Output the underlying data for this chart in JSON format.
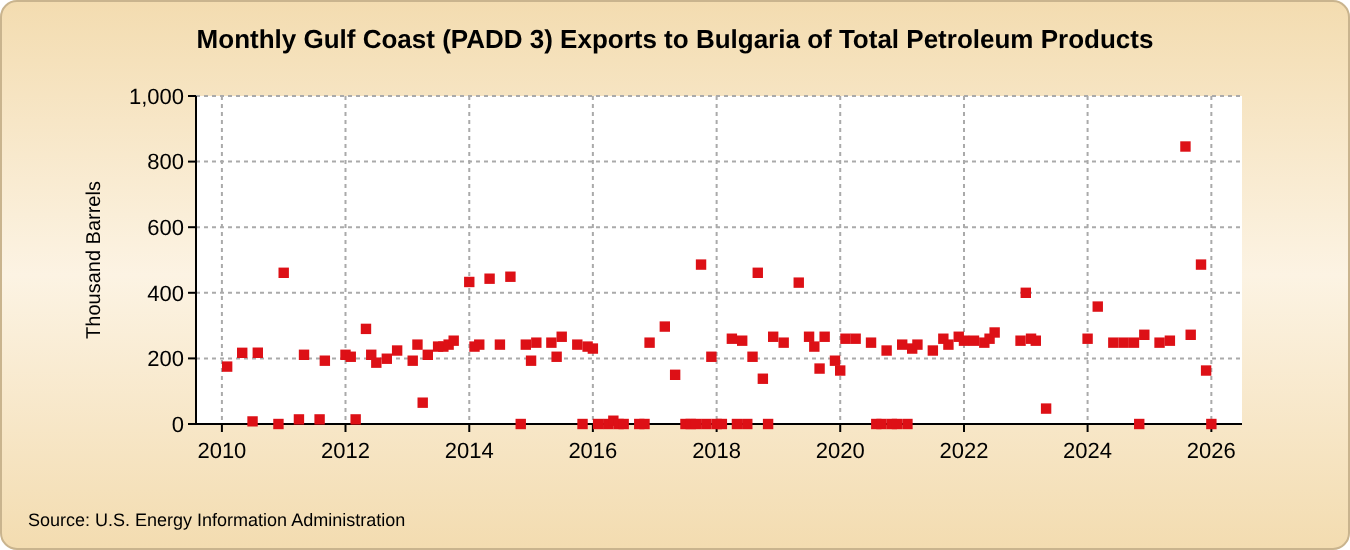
{
  "chart_data": {
    "type": "scatter",
    "title": "Monthly Gulf Coast (PADD 3) Exports to Bulgaria of Total Petroleum Products",
    "ylabel": "Thousand Barrels",
    "annotations": [
      "Source: U.S. Energy Information Administration"
    ],
    "x": [
      "2010-02",
      "2010-05",
      "2010-07",
      "2010-08",
      "2010-12",
      "2011-01",
      "2011-04",
      "2011-05",
      "2011-08",
      "2011-09",
      "2012-01",
      "2012-02",
      "2012-03",
      "2012-05",
      "2012-06",
      "2012-07",
      "2012-09",
      "2012-11",
      "2013-02",
      "2013-03",
      "2013-04",
      "2013-05",
      "2013-07",
      "2013-08",
      "2013-09",
      "2013-10",
      "2014-01",
      "2014-02",
      "2014-03",
      "2014-05",
      "2014-07",
      "2014-09",
      "2014-11",
      "2014-12",
      "2015-01",
      "2015-02",
      "2015-05",
      "2015-06",
      "2015-07",
      "2015-10",
      "2015-11",
      "2015-12",
      "2016-01",
      "2016-02",
      "2016-04",
      "2016-05",
      "2016-06",
      "2016-07",
      "2016-10",
      "2016-11",
      "2016-12",
      "2017-03",
      "2017-05",
      "2017-07",
      "2017-08",
      "2017-09",
      "2017-10",
      "2017-11",
      "2017-12",
      "2018-01",
      "2018-02",
      "2018-04",
      "2018-05",
      "2018-06",
      "2018-07",
      "2018-08",
      "2018-09",
      "2018-10",
      "2018-11",
      "2018-12",
      "2019-02",
      "2019-05",
      "2019-07",
      "2019-08",
      "2019-09",
      "2019-10",
      "2019-12",
      "2020-01",
      "2020-02",
      "2020-04",
      "2020-07",
      "2020-08",
      "2020-09",
      "2020-10",
      "2020-11",
      "2020-12",
      "2021-01",
      "2021-02",
      "2021-03",
      "2021-04",
      "2021-07",
      "2021-09",
      "2021-10",
      "2021-12",
      "2022-01",
      "2022-03",
      "2022-05",
      "2022-06",
      "2022-07",
      "2022-12",
      "2023-01",
      "2023-02",
      "2023-03",
      "2023-05",
      "2024-01",
      "2024-03",
      "2024-06",
      "2024-08",
      "2024-10",
      "2024-11",
      "2024-12",
      "2025-03",
      "2025-05",
      "2025-08",
      "2025-09",
      "2025-11",
      "2025-12",
      "2026-01"
    ],
    "series": [
      {
        "color": "#dd1016",
        "values": [
          175,
          217,
          8,
          217,
          0,
          461,
          14,
          211,
          14,
          193,
          211,
          205,
          14,
          290,
          211,
          187,
          199,
          224,
          193,
          242,
          65,
          211,
          236,
          236,
          242,
          254,
          433,
          236,
          242,
          443,
          242,
          449,
          0,
          242,
          193,
          248,
          248,
          205,
          266,
          242,
          0,
          236,
          230,
          0,
          0,
          10,
          0,
          0,
          0,
          0,
          248,
          297,
          150,
          0,
          0,
          0,
          486,
          0,
          205,
          0,
          0,
          260,
          0,
          254,
          0,
          205,
          461,
          138,
          0,
          266,
          248,
          431,
          266,
          236,
          169,
          266,
          193,
          163,
          260,
          260,
          248,
          0,
          0,
          224,
          0,
          0,
          242,
          0,
          230,
          242,
          224,
          260,
          242,
          266,
          254,
          254,
          248,
          260,
          279,
          254,
          400,
          260,
          254,
          47,
          260,
          358,
          248,
          248,
          248,
          0,
          272,
          248,
          254,
          846,
          272,
          486,
          163,
          0
        ]
      }
    ],
    "xlim": [
      "2009-08",
      "2026-07"
    ],
    "xticks": [
      "2010",
      "2012",
      "2014",
      "2016",
      "2018",
      "2020",
      "2022",
      "2024",
      "2026"
    ],
    "ylim": [
      0,
      1000
    ],
    "yticks": [
      0,
      200,
      400,
      600,
      800,
      {
        "value": 1000,
        "label": "1,000"
      }
    ],
    "grid": true,
    "marker": "square"
  }
}
